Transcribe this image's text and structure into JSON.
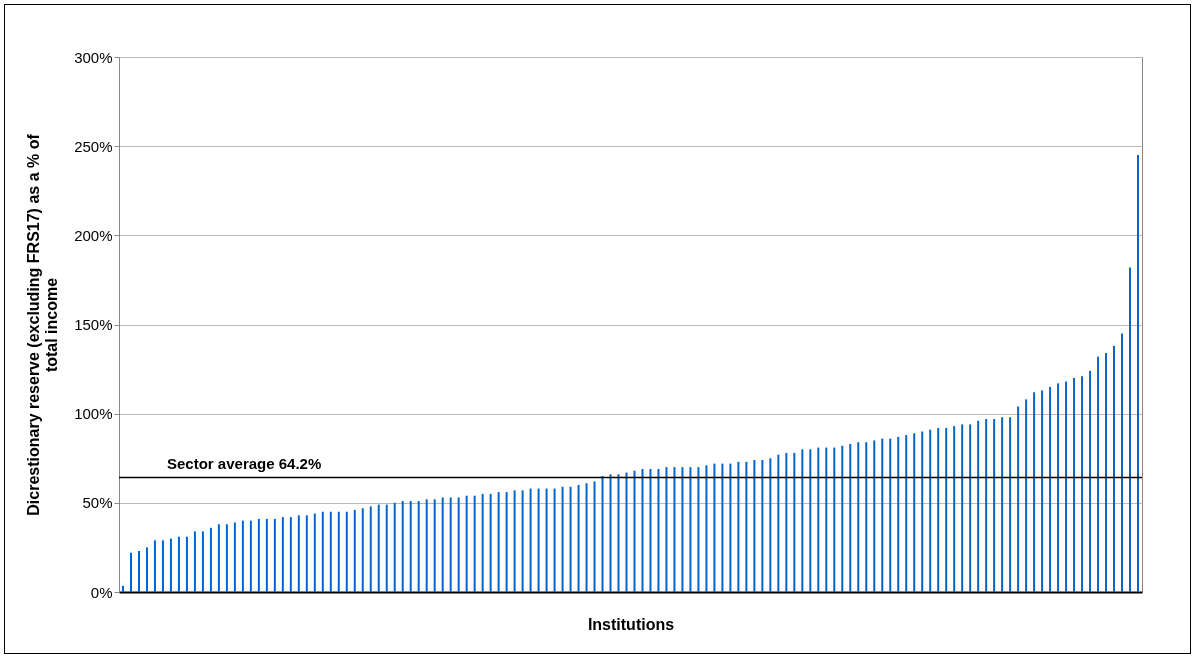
{
  "chart_data": {
    "type": "bar",
    "xlabel": "Institutions",
    "ylabel": "Dicrestionary reserve (excluding FRS17) as a % of total income",
    "categories": [
      null,
      null,
      null,
      null,
      null,
      null,
      null,
      null,
      null,
      null,
      null,
      null,
      null,
      null,
      null,
      null,
      null,
      null,
      null,
      null,
      null,
      null,
      null,
      null,
      null,
      null,
      null,
      null,
      null,
      null,
      null,
      null,
      null,
      null,
      null,
      null,
      null,
      null,
      null,
      null,
      null,
      null,
      null,
      null,
      null,
      null,
      null,
      null,
      null,
      null,
      null,
      null,
      null,
      null,
      null,
      null,
      null,
      null,
      null,
      null,
      null,
      null,
      null,
      null,
      null,
      null,
      null,
      null,
      null,
      null,
      null,
      null,
      null,
      null,
      null,
      null,
      null,
      null,
      null,
      null,
      null,
      null,
      null,
      null,
      null,
      null,
      null,
      null,
      null,
      null,
      null,
      null,
      null,
      null,
      null,
      null,
      null,
      null,
      null,
      null,
      null,
      null,
      null,
      null,
      null,
      null,
      null,
      null,
      null,
      null,
      null,
      null,
      null,
      null,
      null,
      null,
      null,
      null,
      null,
      null,
      null,
      null,
      null,
      null,
      null,
      null,
      null,
      null
    ],
    "values": [
      3.5,
      22,
      23,
      25,
      29,
      29,
      30,
      31,
      31,
      34,
      34,
      36,
      38,
      38,
      39,
      40,
      40,
      41,
      41,
      41,
      42,
      42,
      43,
      43,
      44,
      45,
      45,
      45,
      45,
      46,
      47,
      48,
      49,
      49,
      50,
      51,
      51,
      51,
      52,
      52,
      53,
      53,
      53,
      54,
      54,
      55,
      55,
      56,
      56,
      57,
      57,
      58,
      58,
      58,
      58,
      59,
      59,
      60,
      61,
      62,
      65,
      66,
      66,
      67,
      68,
      69,
      69,
      69,
      70,
      70,
      70,
      70,
      70,
      71,
      72,
      72,
      72,
      73,
      73,
      74,
      74,
      75,
      77,
      78,
      78,
      80,
      80,
      81,
      81,
      81,
      82,
      83,
      84,
      84,
      85,
      86,
      86,
      87,
      88,
      89,
      90,
      91,
      92,
      92,
      93,
      94,
      94,
      96,
      97,
      97,
      98,
      98,
      104,
      108,
      112,
      113,
      115,
      117,
      118,
      120,
      121,
      124,
      132,
      134,
      138,
      145,
      182,
      245
    ],
    "color": "#0066cc",
    "ylim": [
      0,
      300
    ],
    "yticks": [
      {
        "value": 0,
        "label": "0%"
      },
      {
        "value": 50,
        "label": "50%"
      },
      {
        "value": 100,
        "label": "100%"
      },
      {
        "value": 150,
        "label": "150%"
      },
      {
        "value": 200,
        "label": "200%"
      },
      {
        "value": 250,
        "label": "250%"
      },
      {
        "value": 300,
        "label": "300%"
      }
    ],
    "grid": "y",
    "ref_lines": [
      {
        "axis": "y",
        "value": 64.2,
        "label": "Sector average  64.2%",
        "color": "#000000"
      }
    ]
  }
}
